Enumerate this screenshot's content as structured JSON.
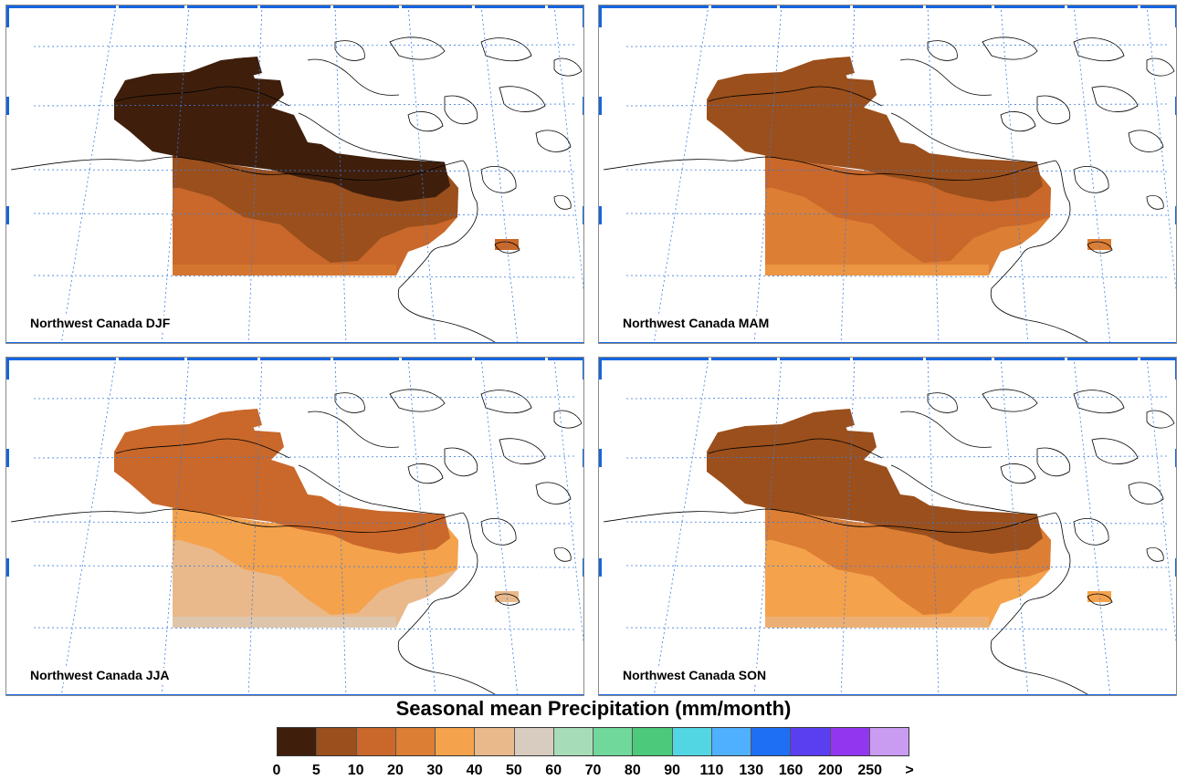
{
  "title": "Seasonal mean Precipitation (mm/month)",
  "panels": [
    {
      "label": "Northwest Canada DJF",
      "season": "DJF",
      "north_level": 0,
      "mid_level": 1,
      "south_level": 2
    },
    {
      "label": "Northwest Canada MAM",
      "season": "MAM",
      "north_level": 1,
      "mid_level": 2,
      "south_level": 3
    },
    {
      "label": "Northwest Canada JJA",
      "season": "JJA",
      "north_level": 2,
      "mid_level": 4,
      "south_level": 5
    },
    {
      "label": "Northwest Canada SON",
      "season": "SON",
      "north_level": 1,
      "mid_level": 3,
      "south_level": 4
    }
  ],
  "colorbar": {
    "ticks": [
      "0",
      "5",
      "10",
      "20",
      "30",
      "40",
      "50",
      "60",
      "70",
      "80",
      "90",
      "110",
      "130",
      "160",
      "200",
      "250",
      ">"
    ],
    "colors": [
      "#3f1f0c",
      "#9a4f1c",
      "#c9682a",
      "#dc7e34",
      "#f4a24c",
      "#e9b98b",
      "#d7ccbf",
      "#a7dcb8",
      "#6fd89a",
      "#4cc97a",
      "#52d6e4",
      "#4fb0ff",
      "#1f6ff5",
      "#5a3ff0",
      "#9236f0",
      "#c99cf2"
    ]
  },
  "colors": {
    "grid": "#3b7de0",
    "frame_accent": "#1565e0",
    "coast": "#000000"
  }
}
